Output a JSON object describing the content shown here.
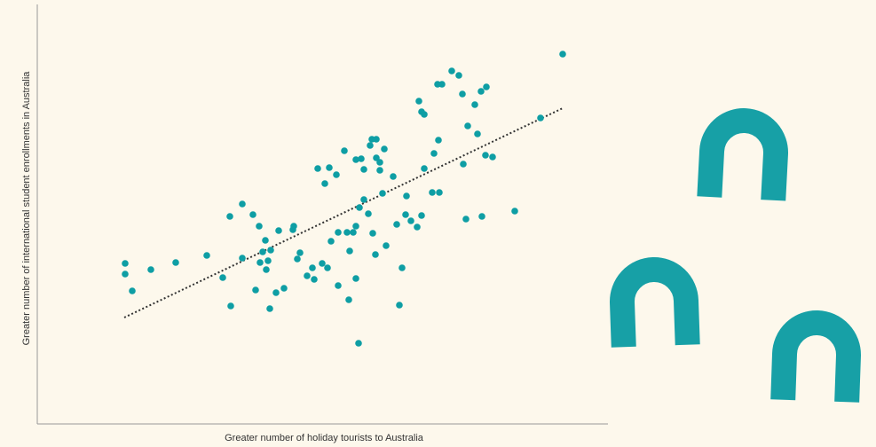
{
  "chart_data": {
    "type": "scatter",
    "xlabel": "Greater number of holiday tourists to Australia",
    "ylabel": "Greater number of international student enrollments in Australia",
    "color": "#0e9ea4",
    "xlim": [
      0,
      643
    ],
    "ylim": [
      0,
      473
    ],
    "x": [
      99,
      99,
      107,
      128,
      156,
      191,
      209,
      217,
      218,
      231,
      231,
      243,
      246,
      250,
      251,
      254,
      257,
      258,
      260,
      262,
      263,
      269,
      272,
      278,
      288,
      289,
      293,
      296,
      304,
      310,
      312,
      316,
      321,
      324,
      327,
      329,
      331,
      337,
      339,
      339,
      346,
      349,
      351,
      352,
      356,
      359,
      359,
      359,
      362,
      363,
      365,
      368,
      368,
      373,
      375,
      377,
      378,
      381,
      382,
      382,
      386,
      386,
      389,
      391,
      393,
      401,
      405,
      408,
      411,
      415,
      416,
      421,
      428,
      430,
      433,
      433,
      436,
      436,
      445,
      447,
      451,
      452,
      453,
      456,
      467,
      475,
      479,
      480,
      483,
      485,
      493,
      496,
      500,
      501,
      505,
      506,
      513,
      538,
      567,
      592
    ],
    "values": [
      181,
      169,
      150,
      174,
      182,
      190,
      165,
      234,
      133,
      248,
      187,
      236,
      151,
      223,
      182,
      194,
      207,
      174,
      184,
      130,
      196,
      148,
      218,
      153,
      219,
      223,
      186,
      193,
      167,
      176,
      163,
      288,
      181,
      271,
      176,
      289,
      206,
      281,
      156,
      216,
      308,
      216,
      140,
      195,
      216,
      223,
      298,
      164,
      91,
      244,
      299,
      253,
      287,
      237,
      314,
      321,
      215,
      191,
      321,
      300,
      295,
      286,
      260,
      310,
      201,
      279,
      225,
      134,
      176,
      236,
      257,
      229,
      222,
      364,
      235,
      352,
      349,
      288,
      261,
      305,
      383,
      320,
      261,
      383,
      398,
      393,
      372,
      293,
      231,
      336,
      360,
      327,
      375,
      234,
      303,
      380,
      301,
      240,
      345,
      417
    ],
    "trendline": {
      "x": [
        98,
        592
      ],
      "values": [
        120,
        356
      ],
      "color": "#333333"
    }
  }
}
